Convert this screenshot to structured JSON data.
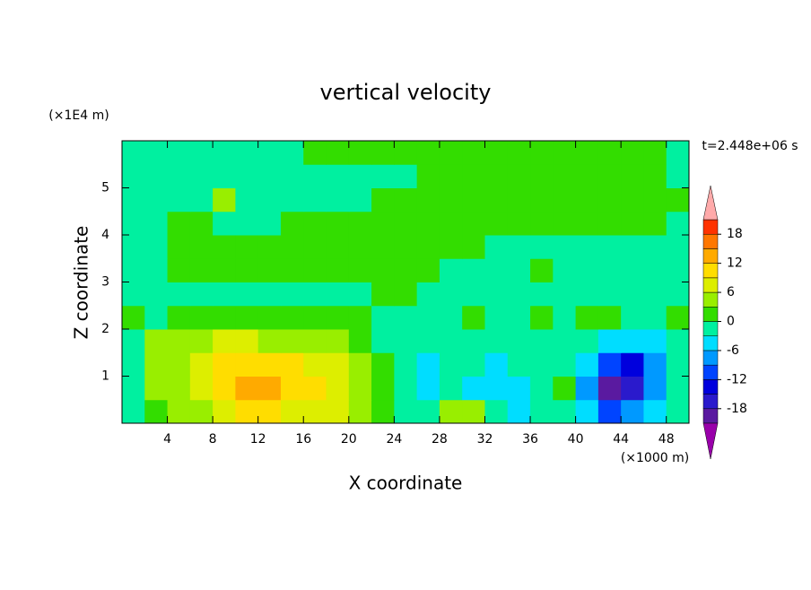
{
  "chart_data": {
    "type": "contour",
    "title": "vertical velocity",
    "time_label": "t=2.448e+06 s",
    "x_label": "X coordinate",
    "y_label": "Z coordinate",
    "x_unit": "(×1000 m)",
    "y_unit": "(×1E4 m)",
    "xlim": [
      0,
      50
    ],
    "ylim": [
      0,
      6
    ],
    "xticks": [
      4,
      8,
      12,
      16,
      20,
      24,
      28,
      32,
      36,
      40,
      44,
      48
    ],
    "yticks": [
      1,
      2,
      3,
      4,
      5
    ],
    "x": [
      1,
      3,
      5,
      7,
      9,
      11,
      13,
      15,
      17,
      19,
      21,
      23,
      25,
      27,
      29,
      31,
      33,
      35,
      37,
      39,
      41,
      43,
      45,
      47,
      49
    ],
    "y": [
      0.25,
      0.75,
      1.25,
      1.75,
      2.25,
      2.75,
      3.25,
      3.75,
      4.25,
      4.75,
      5.25,
      5.75
    ],
    "z": [
      [
        -1,
        2,
        4,
        5,
        7,
        9,
        9,
        8,
        7,
        6,
        4,
        2,
        -1,
        -2,
        4,
        4,
        -2,
        -4,
        -2,
        -1,
        -4,
        -10,
        -8,
        -4,
        -2
      ],
      [
        -1,
        3,
        5,
        8,
        10,
        13,
        14,
        11,
        9,
        7,
        5,
        2,
        -1,
        -4,
        -3,
        -4,
        -6,
        -4,
        -3,
        2,
        -8,
        -20,
        -16,
        -8,
        -3
      ],
      [
        -1,
        3,
        5,
        7,
        9,
        10,
        10,
        9,
        8,
        6,
        4,
        1,
        -2,
        -4,
        -3,
        -3,
        -4,
        -3,
        -2,
        -2,
        -6,
        -12,
        -13,
        -7,
        -3
      ],
      [
        -1,
        4,
        4,
        5,
        6,
        6,
        5,
        5,
        5,
        4,
        2,
        -1,
        -2,
        -2,
        -3,
        -3,
        -2,
        -1,
        -2,
        -2,
        -3,
        -4,
        -6,
        -4,
        -2
      ],
      [
        1,
        -1,
        1,
        2,
        1,
        1,
        1,
        1,
        2,
        1,
        1,
        -1,
        -1,
        -1,
        -1,
        1,
        -1,
        -1,
        1,
        -1,
        1,
        1,
        -1,
        -1,
        1
      ],
      [
        -1,
        -1,
        -1,
        -1,
        -1,
        -1,
        -1,
        -1,
        -1,
        -1,
        -1,
        1,
        1,
        -1,
        -1,
        -1,
        -1,
        -1,
        -1,
        -1,
        -1,
        -1,
        -1,
        -1,
        -1
      ],
      [
        -1,
        -1,
        1,
        1,
        1,
        1,
        1,
        1,
        1,
        1,
        1,
        1,
        1,
        1,
        -1,
        -1,
        -1,
        -1,
        1,
        -1,
        -1,
        -1,
        -1,
        -1,
        -1
      ],
      [
        -1,
        -1,
        1,
        1,
        1,
        1,
        1,
        1,
        1,
        1,
        1,
        1,
        1,
        1,
        1,
        1,
        -1,
        -1,
        -1,
        -1,
        -1,
        -1,
        -1,
        -1,
        -1
      ],
      [
        -1,
        -1,
        1,
        1,
        -1,
        -1,
        -1,
        1,
        1,
        1,
        1,
        1,
        1,
        1,
        1,
        1,
        1,
        1,
        1,
        1,
        1,
        1,
        1,
        1,
        -1
      ],
      [
        -1,
        -1,
        -1,
        -1,
        4,
        -1,
        -1,
        -1,
        -1,
        -1,
        -1,
        1,
        1,
        1,
        1,
        1,
        1,
        1,
        1,
        1,
        1,
        1,
        1,
        1,
        1
      ],
      [
        -1,
        -1,
        -1,
        -1,
        -1,
        -1,
        -1,
        -1,
        -1,
        -1,
        -1,
        -1,
        -1,
        1,
        1,
        1,
        1,
        1,
        1,
        1,
        1,
        1,
        1,
        1,
        -1
      ],
      [
        -1,
        -1,
        -1,
        -1,
        -1,
        -1,
        -1,
        -1,
        1,
        1,
        1,
        1,
        1,
        1,
        1,
        1,
        1,
        1,
        1,
        1,
        1,
        1,
        1,
        1,
        -1
      ]
    ],
    "levels": [
      -21,
      -18,
      -15,
      -12,
      -9,
      -6,
      -3,
      0,
      3,
      6,
      9,
      12,
      15,
      18,
      21
    ],
    "colors": [
      "#9900aa",
      "#5a1aa0",
      "#2a1acc",
      "#0000dd",
      "#0044ff",
      "#0099ff",
      "#00ddff",
      "#00f0a0",
      "#33dd00",
      "#99ee00",
      "#ddee00",
      "#ffdd00",
      "#ffaa00",
      "#ff7700",
      "#ff3300",
      "#ffaaaa"
    ],
    "colorbar_ticks": [
      -18,
      -12,
      -6,
      0,
      6,
      12,
      18
    ]
  }
}
